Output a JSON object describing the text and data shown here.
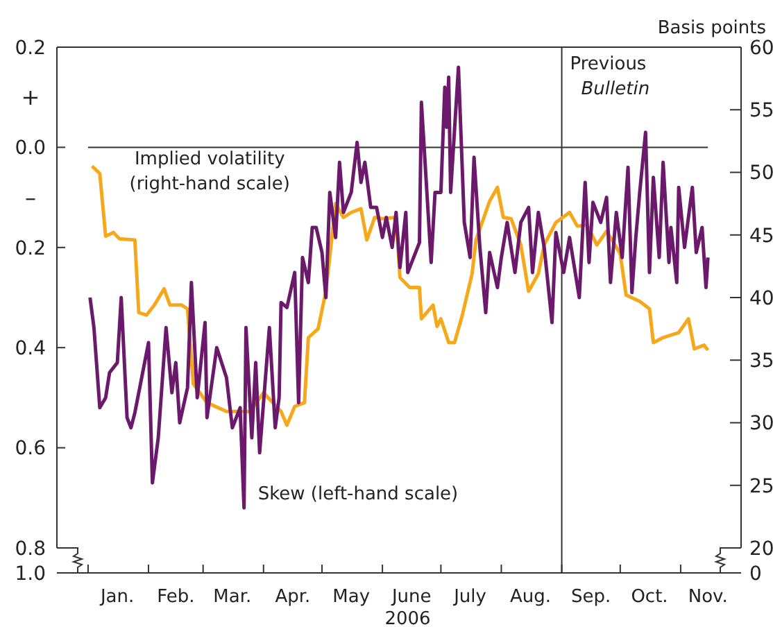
{
  "chart_data": {
    "type": "line",
    "xlabel": "2006",
    "xlim": [
      "2005-12-16",
      "2006-12-02"
    ],
    "xticks": [
      {
        "value": "2006-01-01",
        "label": null
      },
      {
        "value": "2006-01-16",
        "label": "Jan."
      },
      {
        "value": "2006-02-01",
        "label": null
      },
      {
        "value": "2006-02-15",
        "label": "Feb."
      },
      {
        "value": "2006-03-01",
        "label": null
      },
      {
        "value": "2006-03-16",
        "label": "Mar."
      },
      {
        "value": "2006-04-01",
        "label": null
      },
      {
        "value": "2006-04-16",
        "label": "Apr."
      },
      {
        "value": "2006-05-01",
        "label": null
      },
      {
        "value": "2006-05-16",
        "label": "May"
      },
      {
        "value": "2006-06-01",
        "label": null
      },
      {
        "value": "2006-06-16",
        "label": "June"
      },
      {
        "value": "2006-07-01",
        "label": null
      },
      {
        "value": "2006-07-16",
        "label": "July"
      },
      {
        "value": "2006-08-01",
        "label": null
      },
      {
        "value": "2006-08-16",
        "label": "Aug."
      },
      {
        "value": "2006-09-01",
        "label": null
      },
      {
        "value": "2006-09-16",
        "label": "Sep."
      },
      {
        "value": "2006-10-01",
        "label": null
      },
      {
        "value": "2006-10-16",
        "label": "Oct."
      },
      {
        "value": "2006-11-01",
        "label": null
      },
      {
        "value": "2006-11-15",
        "label": "Nov."
      }
    ],
    "ylim": [
      -0.8,
      0.2
    ],
    "yticks": [
      0.2,
      {
        "value": 0,
        "label": "0.0"
      },
      {
        "value": -0.2,
        "label": "0.2"
      },
      {
        "value": -0.4,
        "label": "0.4"
      },
      {
        "value": -0.6,
        "label": "0.6"
      },
      {
        "value": -0.8,
        "label": "0.8"
      }
    ],
    "y2lim": [
      20,
      60
    ],
    "y2ticks": [
      60,
      55,
      50,
      45,
      40,
      35,
      30,
      25,
      20
    ],
    "grid": false,
    "line_style": "solid",
    "marker": "none",
    "ref_lines": [
      {
        "axis": "y",
        "value": 0,
        "color": "#333333"
      },
      {
        "axis": "x",
        "value": "2006-09-01",
        "label": "Previous\nBulletin",
        "color": "#333333"
      }
    ],
    "annotations": [
      "+",
      "–",
      "Basis points",
      "1.0",
      "0",
      {
        "text": "Implied volatility\n(right-hand scale)",
        "x": "2006-01-10",
        "y": -0.05
      },
      {
        "text": "Skew (left-hand scale)",
        "x": "2006-03-22",
        "y": -0.72
      }
    ],
    "series": [
      {
        "color": "#f5a81c",
        "axis": "y2",
        "x": [
          "2006-01-03",
          "2006-01-07",
          "2006-01-10",
          "2006-01-14",
          "2006-01-17",
          "2006-01-25",
          "2006-01-27",
          "2006-01-31",
          "2006-02-04",
          "2006-02-09",
          "2006-02-12",
          "2006-02-18",
          "2006-02-21",
          "2006-02-24",
          "2006-03-03",
          "2006-03-13",
          "2006-03-19",
          "2006-03-25",
          "2006-04-01",
          "2006-04-10",
          "2006-04-13",
          "2006-04-17",
          "2006-04-22",
          "2006-04-24",
          "2006-04-29",
          "2006-05-03",
          "2006-05-08",
          "2006-05-12",
          "2006-05-16",
          "2006-05-21",
          "2006-05-24",
          "2006-05-28",
          "2006-06-01",
          "2006-06-08",
          "2006-06-10",
          "2006-06-15",
          "2006-06-20",
          "2006-06-21",
          "2006-06-27",
          "2006-06-29",
          "2006-07-01",
          "2006-07-05",
          "2006-07-08",
          "2006-07-12",
          "2006-07-17",
          "2006-07-19",
          "2006-07-26",
          "2006-07-30",
          "2006-08-02",
          "2006-08-06",
          "2006-08-11",
          "2006-08-15",
          "2006-08-20",
          "2006-08-23",
          "2006-08-29",
          "2006-09-05",
          "2006-09-09",
          "2006-09-14",
          "2006-09-19",
          "2006-09-24",
          "2006-10-01",
          "2006-10-04",
          "2006-10-11",
          "2006-10-16",
          "2006-10-18",
          "2006-10-23",
          "2006-10-27",
          "2006-10-31",
          "2006-11-05",
          "2006-11-08",
          "2006-11-13",
          "2006-11-15"
        ],
        "values": [
          50.5,
          49.9,
          44.9,
          45.2,
          44.7,
          44.6,
          38.8,
          38.6,
          39.4,
          40.7,
          39.4,
          39.4,
          39.1,
          33.1,
          31.6,
          30.9,
          30.9,
          30.9,
          32.4,
          30.9,
          29.8,
          31.3,
          31.6,
          36.8,
          37.5,
          40.5,
          47.5,
          46.4,
          46.8,
          47.1,
          44.6,
          46.4,
          46.3,
          46.4,
          41.6,
          40.8,
          40.8,
          38.3,
          39.4,
          37.7,
          38.3,
          36.4,
          36.4,
          38.6,
          41.9,
          44.6,
          47.7,
          48.8,
          46.4,
          46.3,
          44.2,
          40.5,
          41.9,
          44.2,
          46.0,
          46.8,
          45.7,
          45.8,
          44.2,
          45.3,
          43.5,
          40.2,
          39.7,
          39.1,
          36.4,
          36.8,
          37.0,
          37.2,
          38.3,
          35.9,
          36.2,
          35.8
        ]
      },
      {
        "color": "#6b1a6b",
        "x": [
          "2006-01-02",
          "2006-01-04",
          "2006-01-07",
          "2006-01-10",
          "2006-01-12",
          "2006-01-16",
          "2006-01-18",
          "2006-01-21",
          "2006-01-23",
          "2006-01-25",
          "2006-01-28",
          "2006-02-01",
          "2006-02-03",
          "2006-02-06",
          "2006-02-10",
          "2006-02-13",
          "2006-02-15",
          "2006-02-17",
          "2006-02-21",
          "2006-02-23",
          "2006-02-26",
          "2006-03-02",
          "2006-03-03",
          "2006-03-08",
          "2006-03-13",
          "2006-03-16",
          "2006-03-20",
          "2006-03-22",
          "2006-03-23",
          "2006-03-26",
          "2006-03-28",
          "2006-03-30",
          "2006-04-04",
          "2006-04-07",
          "2006-04-09",
          "2006-04-10",
          "2006-04-13",
          "2006-04-17",
          "2006-04-19",
          "2006-04-21",
          "2006-04-24",
          "2006-04-26",
          "2006-04-28",
          "2006-05-01",
          "2006-05-03",
          "2006-05-05",
          "2006-05-08",
          "2006-05-10",
          "2006-05-12",
          "2006-05-16",
          "2006-05-19",
          "2006-05-21",
          "2006-05-23",
          "2006-05-26",
          "2006-05-29",
          "2006-06-01",
          "2006-06-03",
          "2006-06-06",
          "2006-06-08",
          "2006-06-10",
          "2006-06-13",
          "2006-06-14",
          "2006-06-20",
          "2006-06-21",
          "2006-06-26",
          "2006-06-28",
          "2006-07-01",
          "2006-07-03",
          "2006-07-04",
          "2006-07-05",
          "2006-07-06",
          "2006-07-10",
          "2006-07-13",
          "2006-07-16",
          "2006-07-18",
          "2006-07-21",
          "2006-07-24",
          "2006-07-26",
          "2006-07-30",
          "2006-08-01",
          "2006-08-04",
          "2006-08-08",
          "2006-08-11",
          "2006-08-15",
          "2006-08-17",
          "2006-08-20",
          "2006-08-23",
          "2006-08-27",
          "2006-08-29",
          "2006-09-02",
          "2006-09-05",
          "2006-09-10",
          "2006-09-13",
          "2006-09-15",
          "2006-09-17",
          "2006-09-21",
          "2006-09-24",
          "2006-09-26",
          "2006-09-29",
          "2006-10-02",
          "2006-10-05",
          "2006-10-07",
          "2006-10-09",
          "2006-10-11",
          "2006-10-14",
          "2006-10-16",
          "2006-10-18",
          "2006-10-21",
          "2006-10-23",
          "2006-10-26",
          "2006-10-27",
          "2006-10-30",
          "2006-10-31",
          "2006-11-03",
          "2006-11-07",
          "2006-11-09",
          "2006-11-12",
          "2006-11-14",
          "2006-11-15"
        ],
        "values": [
          -0.3,
          -0.36,
          -0.52,
          -0.5,
          -0.45,
          -0.43,
          -0.3,
          -0.54,
          -0.56,
          -0.53,
          -0.47,
          -0.39,
          -0.67,
          -0.58,
          -0.36,
          -0.49,
          -0.43,
          -0.55,
          -0.48,
          -0.27,
          -0.5,
          -0.35,
          -0.54,
          -0.4,
          -0.46,
          -0.56,
          -0.52,
          -0.72,
          -0.36,
          -0.58,
          -0.43,
          -0.61,
          -0.36,
          -0.56,
          -0.5,
          -0.31,
          -0.32,
          -0.25,
          -0.51,
          -0.22,
          -0.27,
          -0.16,
          -0.16,
          -0.21,
          -0.3,
          -0.09,
          -0.18,
          -0.03,
          -0.13,
          -0.09,
          0.01,
          -0.07,
          -0.03,
          -0.12,
          -0.12,
          -0.18,
          -0.14,
          -0.2,
          -0.13,
          -0.24,
          -0.13,
          -0.25,
          -0.19,
          0.09,
          -0.23,
          -0.09,
          -0.09,
          0.12,
          0.04,
          0.14,
          -0.09,
          0.16,
          -0.15,
          -0.22,
          -0.02,
          -0.2,
          -0.33,
          -0.21,
          -0.28,
          -0.22,
          -0.15,
          -0.25,
          -0.15,
          -0.12,
          -0.25,
          -0.13,
          -0.2,
          -0.35,
          -0.17,
          -0.25,
          -0.18,
          -0.3,
          -0.07,
          -0.23,
          -0.11,
          -0.15,
          -0.1,
          -0.27,
          -0.13,
          -0.22,
          -0.04,
          -0.29,
          -0.18,
          -0.09,
          0.03,
          -0.25,
          -0.06,
          -0.22,
          -0.03,
          -0.23,
          -0.16,
          -0.27,
          -0.08,
          -0.2,
          -0.08,
          -0.21,
          -0.16,
          -0.28,
          -0.22
        ]
      }
    ]
  }
}
